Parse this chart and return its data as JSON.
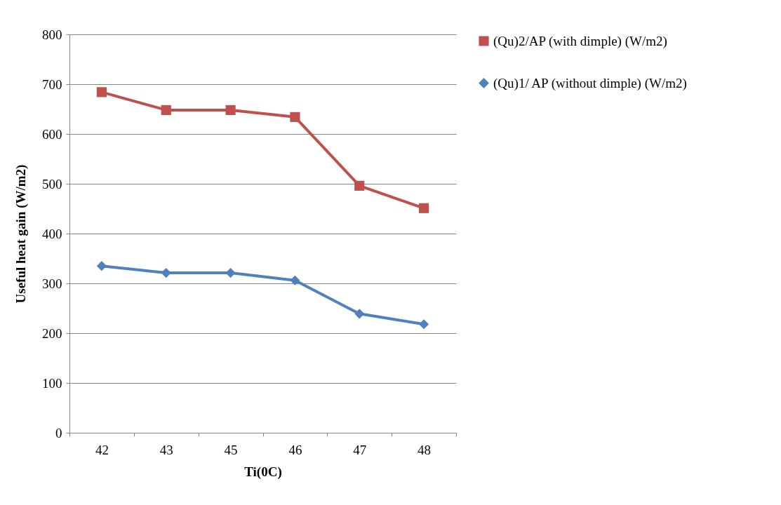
{
  "chart_data": {
    "type": "line",
    "xlabel": "Ti(0C)",
    "ylabel": "Useful heat gain (W/m2)",
    "categories": [
      "42",
      "43",
      "45",
      "46",
      "47",
      "48"
    ],
    "series": [
      {
        "name": "(Qu)2/AP (with dimple) (W/m2)",
        "color": "#c0504d",
        "marker": "square",
        "values": [
          684,
          648,
          648,
          634,
          496,
          451
        ]
      },
      {
        "name": "(Qu)1/ AP (without dimple) (W/m2)",
        "color": "#4f81bd",
        "marker": "diamond",
        "values": [
          335,
          321,
          321,
          306,
          239,
          218
        ]
      }
    ],
    "ylim": [
      0,
      800
    ],
    "yticks": [
      0,
      100,
      200,
      300,
      400,
      500,
      600,
      700,
      800
    ],
    "grid": "y",
    "legend": "right"
  }
}
